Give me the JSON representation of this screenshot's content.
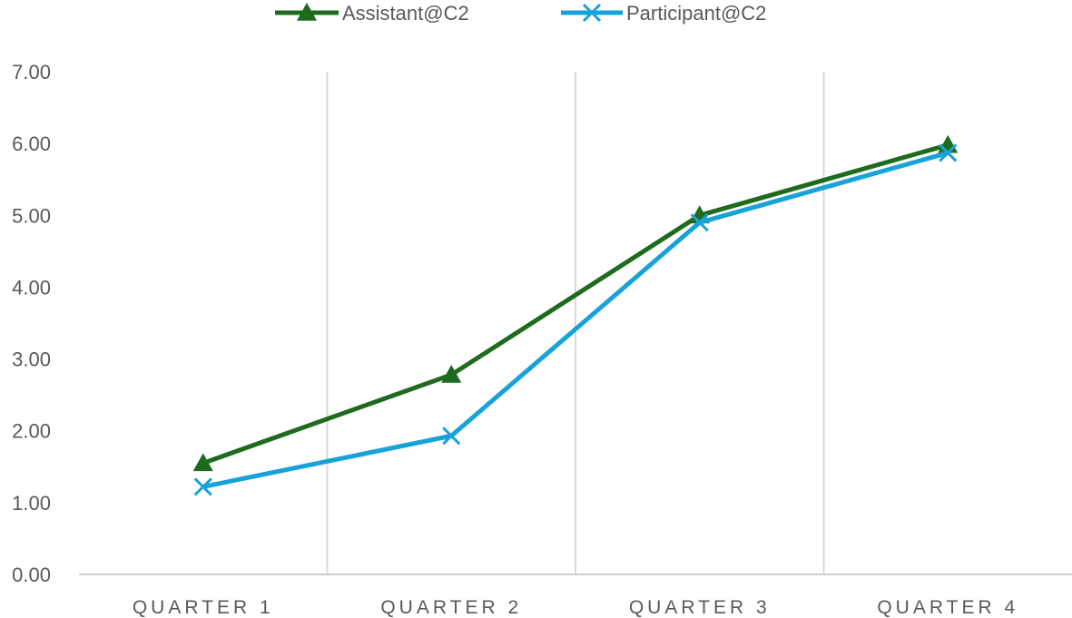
{
  "chart_data": {
    "type": "line",
    "categories": [
      "QUARTER 1",
      "QUARTER 2",
      "QUARTER 3",
      "QUARTER 4"
    ],
    "series": [
      {
        "name": "Assistant@C2",
        "values": [
          1.55,
          2.78,
          5.0,
          5.98
        ],
        "color": "#1e6b1e",
        "marker": "triangle"
      },
      {
        "name": "Participant@C2",
        "values": [
          1.22,
          1.93,
          4.9,
          5.87
        ],
        "color": "#17a2d8",
        "marker": "x"
      }
    ],
    "yticks": [
      "0.00",
      "1.00",
      "2.00",
      "3.00",
      "4.00",
      "5.00",
      "6.00",
      "7.00"
    ],
    "ylim": [
      0,
      7
    ],
    "grid": "vertical",
    "legend_position": "top-center",
    "title": "",
    "xlabel": "",
    "ylabel": ""
  }
}
